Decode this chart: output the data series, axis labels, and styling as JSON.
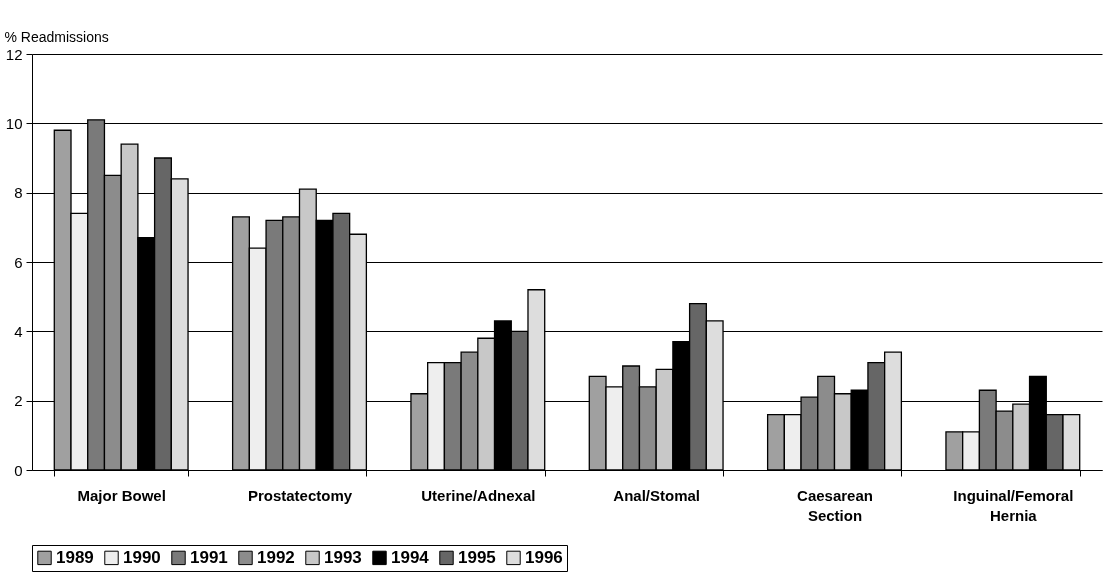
{
  "chart_data": {
    "type": "bar",
    "ylabel": "% Readmissions",
    "categories": [
      "Major Bowel",
      "Prostatectomy",
      "Uterine/Adnexal",
      "Anal/Stomal",
      "Caesarean Section",
      "Inguinal/Femoral Hernia"
    ],
    "series": [
      {
        "name": "1989",
        "color": "#a0a0a0",
        "values": [
          9.8,
          7.3,
          2.2,
          2.7,
          1.6,
          1.1
        ]
      },
      {
        "name": "1990",
        "color": "#eeeeee",
        "values": [
          7.4,
          6.4,
          3.1,
          2.4,
          1.6,
          1.1
        ]
      },
      {
        "name": "1991",
        "color": "#7a7a7a",
        "values": [
          10.1,
          7.2,
          3.1,
          3.0,
          2.1,
          2.3
        ]
      },
      {
        "name": "1992",
        "color": "#8c8c8c",
        "values": [
          8.5,
          7.3,
          3.4,
          2.4,
          2.7,
          1.7
        ]
      },
      {
        "name": "1993",
        "color": "#c8c8c8",
        "values": [
          9.4,
          8.1,
          3.8,
          2.9,
          2.2,
          1.9
        ]
      },
      {
        "name": "1994",
        "color": "#000000",
        "values": [
          6.7,
          7.2,
          4.3,
          3.7,
          2.3,
          2.7
        ]
      },
      {
        "name": "1995",
        "color": "#666666",
        "values": [
          9.0,
          7.4,
          4.0,
          4.8,
          3.1,
          1.6
        ]
      },
      {
        "name": "1996",
        "color": "#dddddd",
        "values": [
          8.4,
          6.8,
          5.2,
          4.3,
          3.4,
          1.6
        ]
      }
    ],
    "ylim": [
      0,
      12
    ],
    "yticks": [
      0,
      2,
      4,
      6,
      8,
      10,
      12
    ],
    "grid": "y",
    "legend": "bottom"
  }
}
